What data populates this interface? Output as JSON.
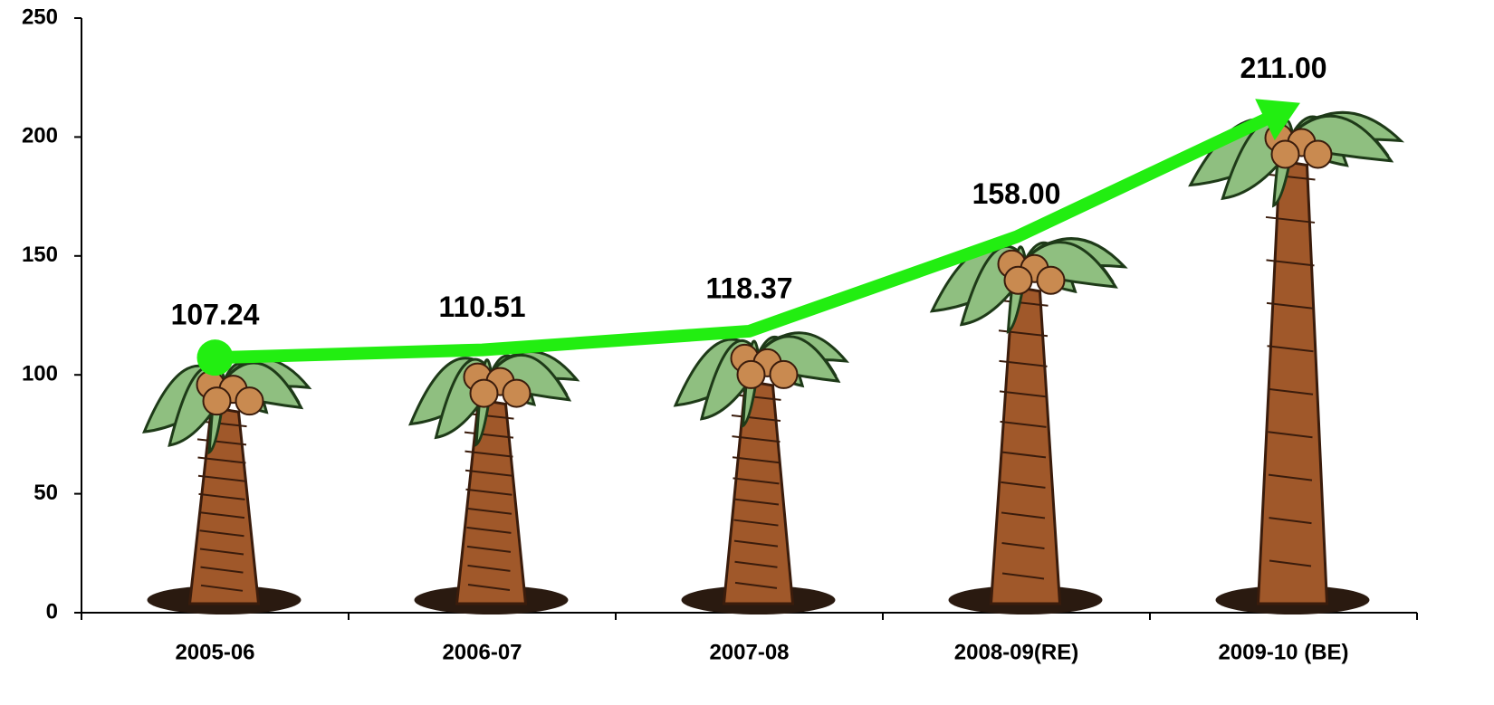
{
  "chart_data": {
    "type": "pictograph-line",
    "categories": [
      "2005-06",
      "2006-07",
      "2007-08",
      "2008-09(RE)",
      "2009-10 (BE)"
    ],
    "values": [
      107.24,
      110.51,
      118.37,
      158.0,
      211.0
    ],
    "value_labels": [
      "107.24",
      "110.51",
      "118.37",
      "158.00",
      "211.00"
    ],
    "color": "#22ee11",
    "ylim": [
      0,
      250
    ],
    "yticks": [
      0,
      50,
      100,
      150,
      200,
      250
    ]
  }
}
